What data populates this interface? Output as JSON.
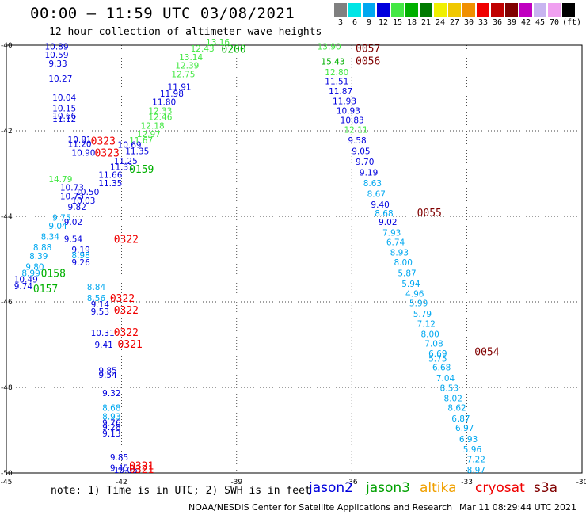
{
  "header": {
    "title": "00:00 – 11:59 UTC 03/08/2021",
    "subtitle": "12 hour collection of altimeter wave heights"
  },
  "legend": {
    "unit": "(ft)",
    "bins": [
      {
        "label": "3",
        "color": "#808080"
      },
      {
        "label": "6",
        "color": "#00e5e5"
      },
      {
        "label": "9",
        "color": "#00a8f0"
      },
      {
        "label": "12",
        "color": "#0000dd"
      },
      {
        "label": "15",
        "color": "#44e844"
      },
      {
        "label": "18",
        "color": "#00b000"
      },
      {
        "label": "21",
        "color": "#007a00"
      },
      {
        "label": "24",
        "color": "#f0f000"
      },
      {
        "label": "27",
        "color": "#f0c800"
      },
      {
        "label": "30",
        "color": "#f09000"
      },
      {
        "label": "33",
        "color": "#f00000"
      },
      {
        "label": "36",
        "color": "#c00000"
      },
      {
        "label": "39",
        "color": "#800000"
      },
      {
        "label": "42",
        "color": "#c000c0"
      },
      {
        "label": "45",
        "color": "#c8b4f0"
      },
      {
        "label": "70",
        "color": "#f0a0f0"
      },
      {
        "label": "",
        "color": "#000000"
      }
    ]
  },
  "footer": {
    "note": "note: 1) Time is in UTC; 2) SWH is in feet",
    "satellites": [
      {
        "name": "jason2",
        "color": "#0000dd"
      },
      {
        "name": "jason3",
        "color": "#00a000"
      },
      {
        "name": "altika",
        "color": "#f0a000"
      },
      {
        "name": "cryosat",
        "color": "#f00000"
      },
      {
        "name": "s3a",
        "color": "#800000"
      }
    ],
    "credit": "NOAA/NESDIS Center for Satellite Applications and Research",
    "timestamp": "Mar 11 08:29:44 UTC 2021"
  },
  "chart_data": {
    "type": "scatter",
    "xlim": [
      -45,
      -30
    ],
    "ylim": [
      -50,
      -40
    ],
    "x_ticks": [
      "-45",
      "-42",
      "-39",
      "-36",
      "-33",
      "-30"
    ],
    "y_ticks": [
      "-40",
      "-42",
      "-44",
      "-46",
      "-48",
      "-50"
    ],
    "colors": {
      "jason2": "#0000dd",
      "jason3_light": "#44e844",
      "jason3": "#00b000",
      "cyan": "#00a8f0",
      "cryosat": "#f00000",
      "s3a": "#800000"
    },
    "time_labels": [
      {
        "text": "0200",
        "x": -39.4,
        "y": -40.18,
        "c": "jason3"
      },
      {
        "text": "0159",
        "x": -41.8,
        "y": -42.98,
        "c": "jason3"
      },
      {
        "text": "0158",
        "x": -44.1,
        "y": -45.42,
        "c": "jason3"
      },
      {
        "text": "0157",
        "x": -44.3,
        "y": -45.78,
        "c": "jason3"
      },
      {
        "text": "0057",
        "x": -35.9,
        "y": -40.16,
        "c": "s3a"
      },
      {
        "text": "0056",
        "x": -35.9,
        "y": -40.45,
        "c": "s3a"
      },
      {
        "text": "0055",
        "x": -34.3,
        "y": -44.0,
        "c": "s3a"
      },
      {
        "text": "0054",
        "x": -32.8,
        "y": -47.25,
        "c": "s3a"
      },
      {
        "text": "0323",
        "x": -42.8,
        "y": -42.32,
        "c": "cryosat"
      },
      {
        "text": "0323",
        "x": -42.7,
        "y": -42.6,
        "c": "cryosat"
      },
      {
        "text": "0322",
        "x": -42.2,
        "y": -44.62,
        "c": "cryosat"
      },
      {
        "text": "0322",
        "x": -42.3,
        "y": -46.0,
        "c": "cryosat"
      },
      {
        "text": "0322",
        "x": -42.2,
        "y": -46.28,
        "c": "cryosat"
      },
      {
        "text": "0322",
        "x": -42.2,
        "y": -46.8,
        "c": "cryosat"
      },
      {
        "text": "0321",
        "x": -42.1,
        "y": -47.07,
        "c": "cryosat"
      },
      {
        "text": "0321",
        "x": -41.8,
        "y": -49.92,
        "c": "cryosat"
      },
      {
        "text": "0321",
        "x": -41.8,
        "y": -50.0,
        "c": "cryosat"
      }
    ],
    "points": [
      {
        "t": "10.89",
        "x": -44.0,
        "y": -40.1,
        "c": "jason2"
      },
      {
        "t": "10.59",
        "x": -44.0,
        "y": -40.3,
        "c": "jason2"
      },
      {
        "t": "9.33",
        "x": -43.9,
        "y": -40.5,
        "c": "jason2"
      },
      {
        "t": "10.27",
        "x": -43.9,
        "y": -40.85,
        "c": "jason2"
      },
      {
        "t": "10.04",
        "x": -43.8,
        "y": -41.3,
        "c": "jason2"
      },
      {
        "t": "10.15",
        "x": -43.8,
        "y": -41.55,
        "c": "jason2"
      },
      {
        "t": "10.66",
        "x": -43.8,
        "y": -41.72,
        "c": "jason2"
      },
      {
        "t": "11.12",
        "x": -43.8,
        "y": -41.8,
        "c": "jason2"
      },
      {
        "t": "10.81",
        "x": -43.4,
        "y": -42.28,
        "c": "jason2"
      },
      {
        "t": "11.20",
        "x": -43.4,
        "y": -42.38,
        "c": "jason2"
      },
      {
        "t": "10.90",
        "x": -43.3,
        "y": -42.58,
        "c": "jason2"
      },
      {
        "t": "10.69",
        "x": -42.1,
        "y": -42.4,
        "c": "jason2"
      },
      {
        "t": "11.35",
        "x": -41.9,
        "y": -42.55,
        "c": "jason2"
      },
      {
        "t": "11.25",
        "x": -42.2,
        "y": -42.78,
        "c": "jason2"
      },
      {
        "t": "11.31",
        "x": -42.3,
        "y": -42.92,
        "c": "jason2"
      },
      {
        "t": "11.66",
        "x": -42.6,
        "y": -43.1,
        "c": "jason2"
      },
      {
        "t": "11.35",
        "x": -42.6,
        "y": -43.3,
        "c": "jason2"
      },
      {
        "t": "14.79",
        "x": -43.9,
        "y": -43.2,
        "c": "jason3_light"
      },
      {
        "t": "10.73",
        "x": -43.6,
        "y": -43.4,
        "c": "jason2"
      },
      {
        "t": "10.50",
        "x": -43.2,
        "y": -43.5,
        "c": "jason2"
      },
      {
        "t": "10.73",
        "x": -43.6,
        "y": -43.6,
        "c": "jason2"
      },
      {
        "t": "10.03",
        "x": -43.3,
        "y": -43.7,
        "c": "jason2"
      },
      {
        "t": "9.82",
        "x": -43.4,
        "y": -43.85,
        "c": "jason2"
      },
      {
        "t": "9.75",
        "x": -43.8,
        "y": -44.1,
        "c": "cyan"
      },
      {
        "t": "9.02",
        "x": -43.5,
        "y": -44.2,
        "c": "jason2"
      },
      {
        "t": "9.04",
        "x": -43.9,
        "y": -44.3,
        "c": "cyan"
      },
      {
        "t": "9.54",
        "x": -43.5,
        "y": -44.6,
        "c": "jason2"
      },
      {
        "t": "8.34",
        "x": -44.1,
        "y": -44.55,
        "c": "cyan"
      },
      {
        "t": "8.88",
        "x": -44.3,
        "y": -44.8,
        "c": "cyan"
      },
      {
        "t": "8.39",
        "x": -44.4,
        "y": -45.0,
        "c": "cyan"
      },
      {
        "t": "9.19",
        "x": -43.3,
        "y": -44.85,
        "c": "jason2"
      },
      {
        "t": "8.98",
        "x": -43.3,
        "y": -44.98,
        "c": "cyan"
      },
      {
        "t": "9.26",
        "x": -43.3,
        "y": -45.15,
        "c": "jason2"
      },
      {
        "t": "9.80",
        "x": -44.5,
        "y": -45.25,
        "c": "cyan"
      },
      {
        "t": "8.99",
        "x": -44.6,
        "y": -45.4,
        "c": "cyan"
      },
      {
        "t": "10.49",
        "x": -44.8,
        "y": -45.55,
        "c": "jason2"
      },
      {
        "t": "9.74",
        "x": -44.8,
        "y": -45.7,
        "c": "jason2"
      },
      {
        "t": "8.84",
        "x": -42.9,
        "y": -45.72,
        "c": "cyan"
      },
      {
        "t": "8.56",
        "x": -42.9,
        "y": -45.98,
        "c": "cyan"
      },
      {
        "t": "9.14",
        "x": -42.8,
        "y": -46.13,
        "c": "jason2"
      },
      {
        "t": "9.53",
        "x": -42.8,
        "y": -46.3,
        "c": "jason2"
      },
      {
        "t": "10.31",
        "x": -42.8,
        "y": -46.8,
        "c": "jason2"
      },
      {
        "t": "9.41",
        "x": -42.7,
        "y": -47.07,
        "c": "jason2"
      },
      {
        "t": "9.85",
        "x": -42.6,
        "y": -47.68,
        "c": "jason2"
      },
      {
        "t": "9.54",
        "x": -42.6,
        "y": -47.78,
        "c": "jason2"
      },
      {
        "t": "9.32",
        "x": -42.5,
        "y": -48.2,
        "c": "jason2"
      },
      {
        "t": "8.68",
        "x": -42.5,
        "y": -48.55,
        "c": "cyan"
      },
      {
        "t": "8.93",
        "x": -42.5,
        "y": -48.75,
        "c": "cyan"
      },
      {
        "t": "9.76",
        "x": -42.5,
        "y": -48.9,
        "c": "jason2"
      },
      {
        "t": "9.28",
        "x": -42.5,
        "y": -49.0,
        "c": "jason2"
      },
      {
        "t": "9.13",
        "x": -42.5,
        "y": -49.15,
        "c": "jason2"
      },
      {
        "t": "9.85",
        "x": -42.3,
        "y": -49.7,
        "c": "jason2"
      },
      {
        "t": "9.45",
        "x": -42.3,
        "y": -49.95,
        "c": "jason2"
      },
      {
        "t": "10.05",
        "x": -42.2,
        "y": -50.0,
        "c": "jason2"
      },
      {
        "t": "13.16",
        "x": -39.8,
        "y": -40.0,
        "c": "jason3_light"
      },
      {
        "t": "12.43",
        "x": -40.2,
        "y": -40.15,
        "c": "jason3_light"
      },
      {
        "t": "13.14",
        "x": -40.5,
        "y": -40.35,
        "c": "jason3_light"
      },
      {
        "t": "12.39",
        "x": -40.6,
        "y": -40.55,
        "c": "jason3_light"
      },
      {
        "t": "12.75",
        "x": -40.7,
        "y": -40.75,
        "c": "jason3_light"
      },
      {
        "t": "11.91",
        "x": -40.8,
        "y": -41.05,
        "c": "jason2"
      },
      {
        "t": "11.98",
        "x": -41.0,
        "y": -41.2,
        "c": "jason2"
      },
      {
        "t": "11.80",
        "x": -41.2,
        "y": -41.4,
        "c": "jason2"
      },
      {
        "t": "12.33",
        "x": -41.3,
        "y": -41.6,
        "c": "jason3_light"
      },
      {
        "t": "12.46",
        "x": -41.3,
        "y": -41.75,
        "c": "jason3_light"
      },
      {
        "t": "12.18",
        "x": -41.5,
        "y": -41.95,
        "c": "jason3_light"
      },
      {
        "t": "12.97",
        "x": -41.6,
        "y": -42.15,
        "c": "jason3_light"
      },
      {
        "t": "11.67",
        "x": -41.8,
        "y": -42.3,
        "c": "jason3_light"
      },
      {
        "t": "13.90",
        "x": -36.9,
        "y": -40.1,
        "c": "jason3_light"
      },
      {
        "t": "15.43",
        "x": -36.8,
        "y": -40.45,
        "c": "jason3"
      },
      {
        "t": "12.80",
        "x": -36.7,
        "y": -40.7,
        "c": "jason3_light"
      },
      {
        "t": "11.51",
        "x": -36.7,
        "y": -40.92,
        "c": "jason2"
      },
      {
        "t": "11.87",
        "x": -36.6,
        "y": -41.15,
        "c": "jason2"
      },
      {
        "t": "11.93",
        "x": -36.5,
        "y": -41.38,
        "c": "jason2"
      },
      {
        "t": "10.93",
        "x": -36.4,
        "y": -41.6,
        "c": "jason2"
      },
      {
        "t": "10.83",
        "x": -36.3,
        "y": -41.82,
        "c": "jason2"
      },
      {
        "t": "12.11",
        "x": -36.2,
        "y": -42.05,
        "c": "jason3_light"
      },
      {
        "t": "9.58",
        "x": -36.1,
        "y": -42.3,
        "c": "jason2"
      },
      {
        "t": "9.05",
        "x": -36.0,
        "y": -42.55,
        "c": "jason2"
      },
      {
        "t": "9.70",
        "x": -35.9,
        "y": -42.8,
        "c": "jason2"
      },
      {
        "t": "9.19",
        "x": -35.8,
        "y": -43.05,
        "c": "jason2"
      },
      {
        "t": "8.63",
        "x": -35.7,
        "y": -43.3,
        "c": "cyan"
      },
      {
        "t": "8.67",
        "x": -35.6,
        "y": -43.55,
        "c": "cyan"
      },
      {
        "t": "9.40",
        "x": -35.5,
        "y": -43.8,
        "c": "jason2"
      },
      {
        "t": "8.68",
        "x": -35.4,
        "y": -44.0,
        "c": "cyan"
      },
      {
        "t": "9.02",
        "x": -35.3,
        "y": -44.2,
        "c": "jason2"
      },
      {
        "t": "7.93",
        "x": -35.2,
        "y": -44.45,
        "c": "cyan"
      },
      {
        "t": "6.74",
        "x": -35.1,
        "y": -44.68,
        "c": "cyan"
      },
      {
        "t": "8.93",
        "x": -35.0,
        "y": -44.92,
        "c": "cyan"
      },
      {
        "t": "8.00",
        "x": -34.9,
        "y": -45.15,
        "c": "cyan"
      },
      {
        "t": "5.87",
        "x": -34.8,
        "y": -45.4,
        "c": "cyan"
      },
      {
        "t": "5.94",
        "x": -34.7,
        "y": -45.65,
        "c": "cyan"
      },
      {
        "t": "4.96",
        "x": -34.6,
        "y": -45.88,
        "c": "cyan"
      },
      {
        "t": "5.99",
        "x": -34.5,
        "y": -46.1,
        "c": "cyan"
      },
      {
        "t": "5.79",
        "x": -34.4,
        "y": -46.35,
        "c": "cyan"
      },
      {
        "t": "7.12",
        "x": -34.3,
        "y": -46.58,
        "c": "cyan"
      },
      {
        "t": "8.00",
        "x": -34.2,
        "y": -46.82,
        "c": "cyan"
      },
      {
        "t": "7.08",
        "x": -34.1,
        "y": -47.05,
        "c": "cyan"
      },
      {
        "t": "6.69",
        "x": -34.0,
        "y": -47.28,
        "c": "cyan"
      },
      {
        "t": "5.75",
        "x": -34.0,
        "y": -47.4,
        "c": "cyan"
      },
      {
        "t": "6.68",
        "x": -33.9,
        "y": -47.6,
        "c": "cyan"
      },
      {
        "t": "7.04",
        "x": -33.8,
        "y": -47.85,
        "c": "cyan"
      },
      {
        "t": "8.53",
        "x": -33.7,
        "y": -48.08,
        "c": "cyan"
      },
      {
        "t": "8.02",
        "x": -33.6,
        "y": -48.32,
        "c": "cyan"
      },
      {
        "t": "8.62",
        "x": -33.5,
        "y": -48.55,
        "c": "cyan"
      },
      {
        "t": "6.87",
        "x": -33.4,
        "y": -48.8,
        "c": "cyan"
      },
      {
        "t": "6.97",
        "x": -33.3,
        "y": -49.02,
        "c": "cyan"
      },
      {
        "t": "6.93",
        "x": -33.2,
        "y": -49.28,
        "c": "cyan"
      },
      {
        "t": "5.96",
        "x": -33.1,
        "y": -49.52,
        "c": "cyan"
      },
      {
        "t": "7.22",
        "x": -33.0,
        "y": -49.75,
        "c": "cyan"
      },
      {
        "t": "8.97",
        "x": -33.0,
        "y": -50.0,
        "c": "cyan"
      }
    ]
  }
}
